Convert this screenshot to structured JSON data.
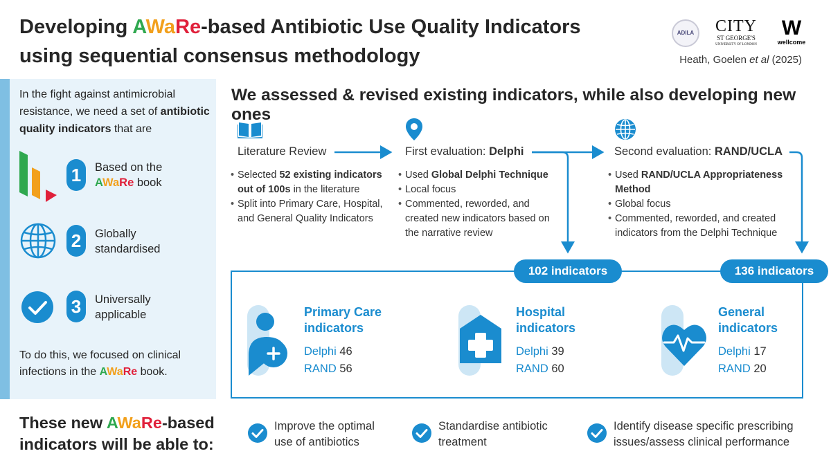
{
  "header": {
    "title_prefix": "Developing ",
    "aware_a1": "A",
    "aware_w": "Wa",
    "aware_r": "Re",
    "title_suffix_line1": "-based Antibiotic Use Quality Indicators",
    "title_line2": "using sequential consensus methodology",
    "citation_names": "Heath, Goelen ",
    "citation_etal": "et al",
    "citation_year": " (2025)",
    "logo_adila": "ADILA",
    "logo_city": "CITY",
    "logo_stgeorges": "ST GEORGE'S",
    "logo_uol": "UNIVERSITY OF LONDON",
    "logo_wellcome_mark": "W",
    "logo_wellcome": "wellcome"
  },
  "left": {
    "intro_1": "In the fight against antimicrobial resistance, we need a set of ",
    "intro_bold": "antibiotic quality indicators",
    "intro_2": " that are",
    "items": [
      {
        "num": "1",
        "line1": "Based on the",
        "line2_suffix": " book"
      },
      {
        "num": "2",
        "line1": "Globally",
        "line2": "standardised"
      },
      {
        "num": "3",
        "line1": "Universally",
        "line2": "applicable"
      }
    ],
    "outro_1": "To do this, we focused on clinical infections in the ",
    "outro_2": " book."
  },
  "main": {
    "heading": "We assessed & revised existing indicators, while also developing new ones",
    "steps": [
      {
        "title": "Literature Review",
        "bullets": [
          {
            "pre": "Selected ",
            "bold": "52 existing indicators out of 100s",
            "post": " in the literature"
          },
          {
            "pre": "Split into Primary Care, Hospital, and General Quality Indicators",
            "bold": "",
            "post": ""
          }
        ]
      },
      {
        "title_pre": "First evaluation: ",
        "title_bold": "Delphi",
        "bullets": [
          {
            "pre": "Used ",
            "bold": "Global Delphi Technique",
            "post": ""
          },
          {
            "pre": "Local focus",
            "bold": "",
            "post": ""
          },
          {
            "pre": "Commented, reworded, and created new indicators based on the narrative review",
            "bold": "",
            "post": ""
          }
        ]
      },
      {
        "title_pre": "Second evaluation: ",
        "title_bold": "RAND/UCLA",
        "bullets": [
          {
            "pre": "Used ",
            "bold": "RAND/UCLA Appropriateness Method",
            "post": ""
          },
          {
            "pre": "Global focus",
            "bold": "",
            "post": ""
          },
          {
            "pre": "Commented, reworded, and created indicators from the Delphi Technique",
            "bold": "",
            "post": ""
          }
        ]
      }
    ],
    "pills": [
      "102 indicators",
      "136 indicators"
    ],
    "categories": [
      {
        "title1": "Primary Care",
        "title2": "indicators",
        "delphi_label": "Delphi",
        "delphi": "46",
        "rand_label": "RAND",
        "rand": "56"
      },
      {
        "title1": "Hospital",
        "title2": "indicators",
        "delphi_label": "Delphi",
        "delphi": "39",
        "rand_label": "RAND",
        "rand": "60"
      },
      {
        "title1": "General",
        "title2": "indicators",
        "delphi_label": "Delphi",
        "delphi": "17",
        "rand_label": "RAND",
        "rand": "20"
      }
    ]
  },
  "bottom": {
    "heading_1": "These new ",
    "heading_2": "-based",
    "heading_3": "indicators will be able to:",
    "outcomes": [
      {
        "line1": "Improve the optimal",
        "line2": "use of antibiotics"
      },
      {
        "line1": "Standardise antibiotic",
        "line2": "treatment"
      },
      {
        "line1": "Identify disease specific prescribing",
        "line2": "issues/assess clinical performance"
      }
    ]
  },
  "colors": {
    "primary": "#1a8ccf",
    "light_blue": "#7fbfe3",
    "panel_bg": "#e8f3fa",
    "aware_green": "#2fa84f",
    "aware_orange": "#f2a01c",
    "aware_red": "#e0203a"
  }
}
